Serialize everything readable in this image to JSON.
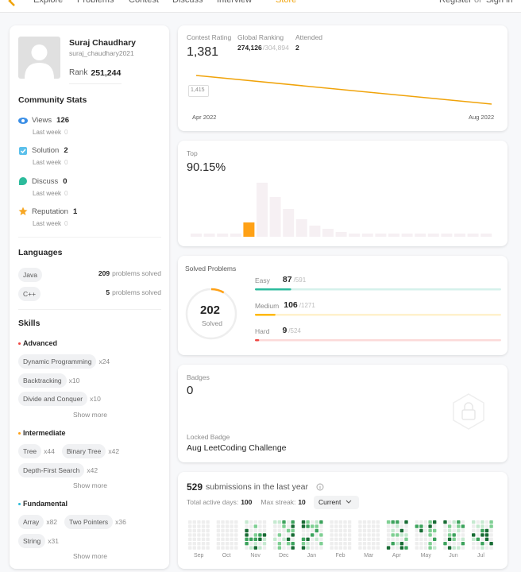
{
  "nav": {
    "items": [
      "Explore",
      "Problems",
      "Contest",
      "Discuss",
      "Interview",
      "Store"
    ],
    "register": "Register",
    "or": "or",
    "sign_in": "Sign in"
  },
  "profile": {
    "name": "Suraj Chaudhary",
    "username": "suraj_chaudhary2021",
    "rank_label": "Rank",
    "rank": "251,244"
  },
  "community": {
    "title": "Community Stats",
    "items": [
      {
        "label": "Views",
        "value": 126,
        "sub": "Last week",
        "sub_value": 0
      },
      {
        "label": "Solution",
        "value": 2,
        "sub": "Last week",
        "sub_value": 0
      },
      {
        "label": "Discuss",
        "value": 0,
        "sub": "Last week",
        "sub_value": 0
      },
      {
        "label": "Reputation",
        "value": 1,
        "sub": "Last week",
        "sub_value": 0
      }
    ]
  },
  "languages": {
    "title": "Languages",
    "items": [
      {
        "name": "Java",
        "count": 209,
        "unit": "problems solved"
      },
      {
        "name": "C++",
        "count": 5,
        "unit": "problems solved"
      }
    ]
  },
  "skills": {
    "title": "Skills",
    "groups": [
      {
        "level": "Advanced",
        "rows": [
          [
            {
              "name": "Dynamic Programming",
              "count": "x24"
            }
          ],
          [
            {
              "name": "Backtracking",
              "count": "x10"
            }
          ],
          [
            {
              "name": "Divide and Conquer",
              "count": "x10"
            }
          ]
        ],
        "more": "Show more"
      },
      {
        "level": "Intermediate",
        "rows": [
          [
            {
              "name": "Tree",
              "count": "x44"
            },
            {
              "name": "Binary Tree",
              "count": "x42"
            }
          ],
          [
            {
              "name": "Depth-First Search",
              "count": "x42"
            }
          ]
        ],
        "more": "Show more"
      },
      {
        "level": "Fundamental",
        "rows": [
          [
            {
              "name": "Array",
              "count": "x82"
            },
            {
              "name": "Two Pointers",
              "count": "x36"
            }
          ],
          [
            {
              "name": "String",
              "count": "x31"
            }
          ]
        ],
        "more": "Show more"
      }
    ]
  },
  "contest": {
    "rating_label": "Contest Rating",
    "rating": "1,381",
    "ranking_label": "Global Ranking",
    "ranking": "274,126",
    "ranking_total": "/304,894",
    "attended_label": "Attended",
    "attended": 2,
    "point_label": "1,415",
    "x_start": "Apr 2022",
    "x_end": "Aug 2022"
  },
  "top": {
    "label": "Top",
    "value": "90.15%"
  },
  "solved": {
    "title": "Solved Problems",
    "count": 202,
    "count_label": "Solved",
    "levels": [
      {
        "name": "Easy",
        "count": 87,
        "total": 591,
        "total_label": "/591",
        "color": "#2cbb9c"
      },
      {
        "name": "Medium",
        "count": 106,
        "total": 1271,
        "total_label": "/1271",
        "color": "#ffb800"
      },
      {
        "name": "Hard",
        "count": 9,
        "total": 524,
        "total_label": "/524",
        "color": "#ef4743"
      }
    ]
  },
  "badges": {
    "title": "Badges",
    "count": 0,
    "locked_label": "Locked Badge",
    "locked_name": "Aug LeetCoding Challenge"
  },
  "submissions": {
    "count": 529,
    "text": "submissions in the last year",
    "active_label": "Total active days:",
    "active_days": 100,
    "streak_label": "Max streak:",
    "streak": 10,
    "dropdown": "Current",
    "months": [
      "Sep",
      "Oct",
      "Nov",
      "Dec",
      "Jan",
      "Feb",
      "Mar",
      "Apr",
      "May",
      "Jun",
      "Jul"
    ]
  }
}
